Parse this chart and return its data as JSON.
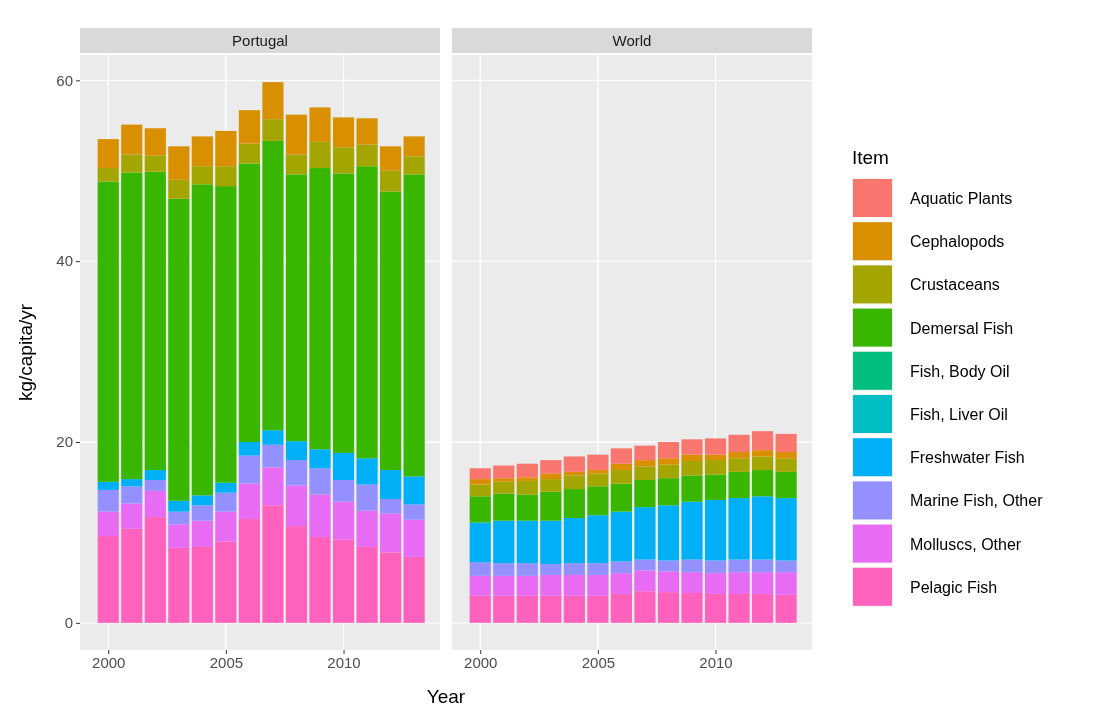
{
  "chart_data": [
    {
      "type": "bar",
      "title": "Portugal",
      "xlabel": "Year",
      "ylabel": "kg/capita/yr",
      "stacked": true,
      "x": [
        2000,
        2001,
        2002,
        2003,
        2004,
        2005,
        2006,
        2007,
        2008,
        2009,
        2010,
        2011,
        2012,
        2013
      ],
      "xlim": [
        1998.8,
        2014.1
      ],
      "xticks": [
        2000,
        2005,
        2010
      ],
      "ylim": [
        -3,
        62.8
      ],
      "yticks": [
        0,
        20,
        40,
        60
      ],
      "grid": true,
      "legend": false,
      "series": [
        {
          "color": "#ff62bc",
          "values": [
            9.6,
            10.4,
            11.7,
            8.3,
            8.4,
            9.0,
            11.5,
            13.0,
            10.7,
            9.5,
            9.2,
            8.4,
            7.8,
            7.3
          ]
        },
        {
          "color": "#e76bf3",
          "values": [
            2.7,
            2.8,
            2.9,
            2.6,
            2.9,
            3.3,
            3.9,
            4.2,
            4.5,
            4.7,
            4.2,
            4.0,
            4.3,
            4.1
          ]
        },
        {
          "color": "#9590ff",
          "values": [
            2.4,
            1.9,
            1.2,
            1.4,
            1.7,
            2.1,
            3.1,
            2.5,
            2.8,
            2.9,
            2.4,
            2.9,
            1.6,
            1.7
          ]
        },
        {
          "color": "#00b0f6",
          "values": [
            0.9,
            0.8,
            1.1,
            1.2,
            1.1,
            1.1,
            1.5,
            1.6,
            2.1,
            2.1,
            3.0,
            2.9,
            3.2,
            3.1
          ]
        },
        {
          "color": "#00bfc4",
          "values": [
            0,
            0,
            0,
            0,
            0,
            0,
            0,
            0,
            0,
            0,
            0,
            0,
            0,
            0
          ]
        },
        {
          "color": "#00bf7d",
          "values": [
            0,
            0,
            0,
            0,
            0,
            0,
            0,
            0,
            0,
            0,
            0,
            0,
            0,
            0
          ]
        },
        {
          "color": "#39b600",
          "values": [
            33.2,
            33.9,
            33.0,
            33.4,
            34.4,
            32.8,
            30.8,
            32.0,
            29.5,
            31.1,
            30.9,
            32.3,
            30.8,
            33.4
          ]
        },
        {
          "color": "#a3a500",
          "values": [
            1.5,
            2.0,
            1.8,
            2.1,
            2.0,
            2.2,
            2.2,
            2.4,
            2.2,
            2.9,
            2.9,
            2.4,
            2.3,
            2.0
          ]
        },
        {
          "color": "#d89000",
          "values": [
            3.2,
            3.3,
            3.0,
            3.7,
            3.3,
            3.9,
            3.7,
            4.1,
            4.4,
            3.8,
            3.3,
            2.9,
            2.7,
            2.2
          ]
        },
        {
          "color": "#f8766d",
          "values": [
            0,
            0,
            0,
            0,
            0,
            0,
            0,
            0,
            0,
            0,
            0,
            0,
            0,
            0
          ]
        }
      ]
    },
    {
      "type": "bar",
      "title": "World",
      "stacked": true,
      "x": [
        2000,
        2001,
        2002,
        2003,
        2004,
        2005,
        2006,
        2007,
        2008,
        2009,
        2010,
        2011,
        2012,
        2013
      ],
      "xlim": [
        1998.8,
        2014.1
      ],
      "xticks": [
        2000,
        2005,
        2010
      ],
      "ylim": [
        -3,
        62.8
      ],
      "yticks": [
        0,
        20,
        40,
        60
      ],
      "tick_labels": "x",
      "grid": true,
      "legend": "right",
      "legend_title": "Item",
      "series": [
        {
          "name": "Pelagic Fish",
          "color": "#ff62bc",
          "values": [
            3.0,
            3.0,
            3.0,
            3.0,
            3.0,
            3.0,
            3.2,
            3.5,
            3.4,
            3.3,
            3.2,
            3.2,
            3.2,
            3.1
          ]
        },
        {
          "name": "Molluscs, Other",
          "color": "#e76bf3",
          "values": [
            2.2,
            2.2,
            2.2,
            2.3,
            2.3,
            2.3,
            2.3,
            2.3,
            2.3,
            2.3,
            2.3,
            2.4,
            2.4,
            2.5
          ]
        },
        {
          "name": "Marine Fish, Other",
          "color": "#9590ff",
          "values": [
            1.5,
            1.4,
            1.4,
            1.2,
            1.3,
            1.3,
            1.3,
            1.2,
            1.2,
            1.4,
            1.4,
            1.4,
            1.4,
            1.3
          ]
        },
        {
          "name": "Freshwater Fish",
          "color": "#00b0f6",
          "values": [
            4.4,
            4.7,
            4.7,
            4.8,
            5.0,
            5.3,
            5.5,
            5.8,
            6.1,
            6.4,
            6.7,
            6.8,
            7.0,
            6.9
          ]
        },
        {
          "name": "Fish, Liver Oil",
          "color": "#00bfc4",
          "values": [
            0,
            0,
            0,
            0,
            0,
            0,
            0,
            0,
            0,
            0,
            0,
            0,
            0,
            0
          ]
        },
        {
          "name": "Fish, Body Oil",
          "color": "#00bf7d",
          "values": [
            0,
            0,
            0,
            0,
            0,
            0,
            0,
            0,
            0,
            0,
            0,
            0,
            0,
            0
          ]
        },
        {
          "name": "Demersal Fish",
          "color": "#39b600",
          "values": [
            2.9,
            3.0,
            2.9,
            3.2,
            3.2,
            3.2,
            3.1,
            3.0,
            3.0,
            2.9,
            2.8,
            2.9,
            2.9,
            2.9
          ]
        },
        {
          "name": "Crustaceans",
          "color": "#a3a500",
          "values": [
            1.3,
            1.3,
            1.5,
            1.4,
            1.5,
            1.4,
            1.5,
            1.5,
            1.5,
            1.6,
            1.6,
            1.5,
            1.5,
            1.5
          ]
        },
        {
          "name": "Cephalopods",
          "color": "#d89000",
          "values": [
            0.6,
            0.4,
            0.4,
            0.6,
            0.4,
            0.4,
            0.7,
            0.7,
            0.7,
            0.7,
            0.6,
            0.7,
            0.7,
            0.7
          ]
        },
        {
          "name": "Aquatic Plants",
          "color": "#f8766d",
          "values": [
            1.2,
            1.4,
            1.5,
            1.5,
            1.7,
            1.7,
            1.7,
            1.6,
            1.8,
            1.7,
            1.8,
            1.9,
            2.1,
            2.0
          ]
        }
      ]
    }
  ]
}
